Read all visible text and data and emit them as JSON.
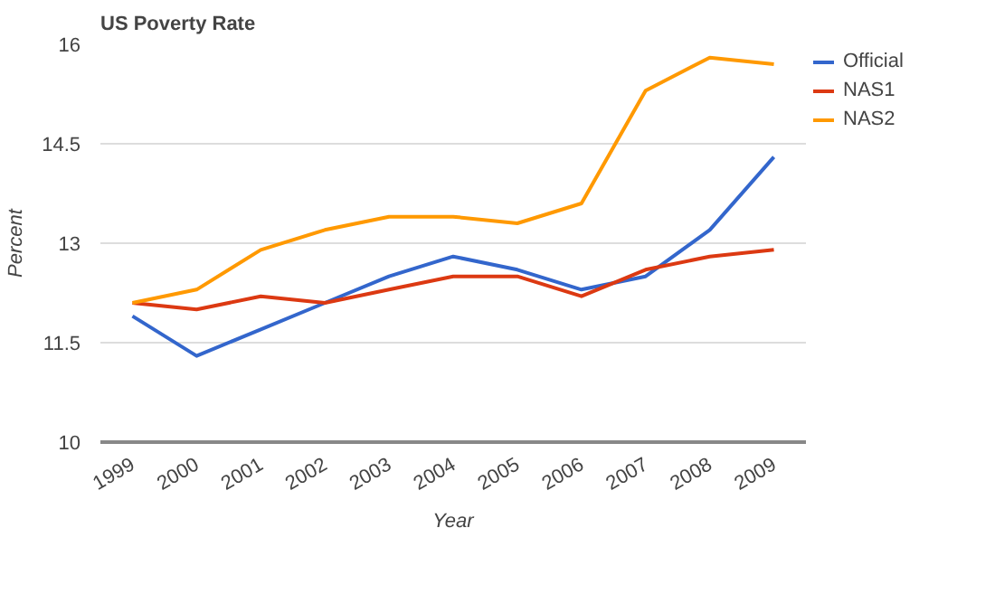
{
  "chart_data": {
    "type": "line",
    "title": "US Poverty Rate",
    "xlabel": "Year",
    "ylabel": "Percent",
    "categories": [
      "1999",
      "2000",
      "2001",
      "2002",
      "2003",
      "2004",
      "2005",
      "2006",
      "2007",
      "2008",
      "2009"
    ],
    "series": [
      {
        "name": "Official",
        "color": "#3366cc",
        "values": [
          11.9,
          11.3,
          11.7,
          12.1,
          12.5,
          12.8,
          12.6,
          12.3,
          12.5,
          13.2,
          14.3
        ]
      },
      {
        "name": "NAS1",
        "color": "#dc3912",
        "values": [
          12.1,
          12.0,
          12.2,
          12.1,
          12.3,
          12.5,
          12.5,
          12.2,
          12.6,
          12.8,
          12.9
        ]
      },
      {
        "name": "NAS2",
        "color": "#ff9900",
        "values": [
          12.1,
          12.3,
          12.9,
          13.2,
          13.4,
          13.4,
          13.3,
          13.6,
          15.3,
          15.8,
          15.7
        ]
      }
    ],
    "ylim": [
      10,
      16
    ],
    "yticks": [
      10,
      11.5,
      13,
      14.5,
      16
    ],
    "grid": "y",
    "legend": "right",
    "marker": "none",
    "line_style": "solid"
  }
}
